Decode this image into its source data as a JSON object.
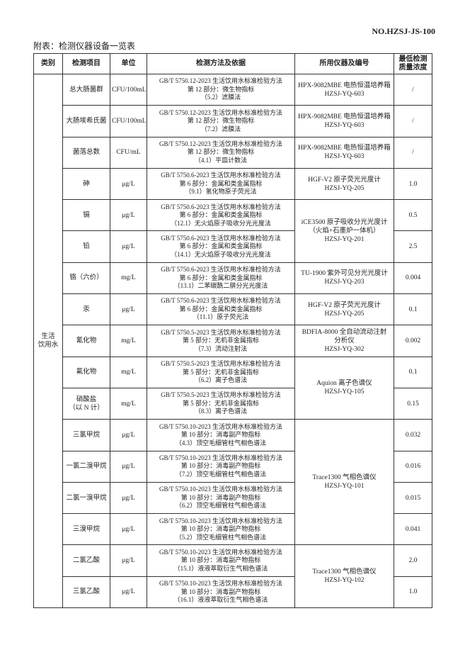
{
  "header": {
    "doc_no": "NO.HZSJ-JS-100",
    "caption": "附表：检测仪器设备一览表"
  },
  "table": {
    "columns": [
      "类别",
      "检测项目",
      "单位",
      "检测方法及依据",
      "所用仪器及编号",
      [
        "最低检测",
        "质量浓度"
      ]
    ],
    "category": [
      "生活",
      "饮用水"
    ],
    "rows": [
      {
        "item": [
          "总大肠菌群"
        ],
        "unit": "CFU/100mL",
        "method": [
          "GB/T 5750.12-2023 生活饮用水标准检验方法",
          "第 12 部分：微生物指标",
          "（5.2）滤膜法"
        ],
        "instrument": [
          "HPX-9082MBE 电热恒温培养箱",
          "HZSJ-YQ-603"
        ],
        "limit": "/"
      },
      {
        "item": [
          "大肠埃希氏菌"
        ],
        "unit": "CFU/100mL",
        "method": [
          "GB/T 5750.12-2023 生活饮用水标准检验方法",
          "第 12 部分：微生物指标",
          "（7.2）滤膜法"
        ],
        "instrument": [
          "HPX-9082MBE 电热恒温培养箱",
          "HZSJ-YQ-603"
        ],
        "limit": "/"
      },
      {
        "item": [
          "菌落总数"
        ],
        "unit": "CFU/mL",
        "method": [
          "GB/T 5750.12-2023 生活饮用水标准检验方法",
          "第 12 部分：微生物指标",
          "（4.1）平皿计数法"
        ],
        "instrument": [
          "HPX-9082MBE 电热恒温培养箱",
          "HZSJ-YQ-603"
        ],
        "limit": "/"
      },
      {
        "item": [
          "砷"
        ],
        "unit": "μg/L",
        "method": [
          "GB/T 5750.6-2023 生活饮用水标准检验方法",
          "第 6 部分：金属和类金属指标",
          "（9.1）氢化物原子荧光法"
        ],
        "instrument": [
          "HGF-V2 原子荧光光度计",
          "HZSJ-YQ-205"
        ],
        "limit": "1.0"
      },
      {
        "item": [
          "镉"
        ],
        "unit": "μg/L",
        "method": [
          "GB/T 5750.6-2023 生活饮用水标准检验方法",
          "第 6 部分：金属和类金属指标",
          "（12.1）无火焰原子吸收分光光度法"
        ],
        "instrument": [
          "iCE3500 原子吸收分光光度计",
          "（火焰+石墨炉一体机）",
          "HZSJ-YQ-201"
        ],
        "limit": "0.5"
      },
      {
        "item": [
          "铅"
        ],
        "unit": "μg/L",
        "method": [
          "GB/T 5750.6-2023 生活饮用水标准检验方法",
          "第 6 部分：金属和类金属指标",
          "（14.1）无火焰原子吸收分光光度法"
        ],
        "limit": "2.5"
      },
      {
        "item": [
          "铬（六价）"
        ],
        "unit": "mg/L",
        "method": [
          "GB/T 5750.6-2023 生活饮用水标准检验方法",
          "第 6 部分：金属和类金属指标",
          "（13.1）二苯碳酰二肼分光光度法"
        ],
        "instrument": [
          "TU-1900 紫外可见分光光度计",
          "HZSJ-YQ-203"
        ],
        "limit": "0.004"
      },
      {
        "item": [
          "汞"
        ],
        "unit": "μg/L",
        "method": [
          "GB/T 5750.6-2023 生活饮用水标准检验方法",
          "第 6 部分：金属和类金属指标",
          "（11.1）原子荧光法"
        ],
        "instrument": [
          "HGF-V2 原子荧光光度计",
          "HZSJ-YQ-205"
        ],
        "limit": "0.1"
      },
      {
        "item": [
          "氰化物"
        ],
        "unit": "mg/L",
        "method": [
          "GB/T 5750.5-2023 生活饮用水标准检验方法",
          "第 5 部分：无机非金属指标",
          "（7.3）流动注射法"
        ],
        "instrument": [
          "BDFIA-8000 全自动流动注射",
          "分析仪",
          "HZSJ-YQ-302"
        ],
        "limit": "0.002"
      },
      {
        "item": [
          "氟化物"
        ],
        "unit": "mg/L",
        "method": [
          "GB/T 5750.5-2023 生活饮用水标准检验方法",
          "第 5 部分：无机非金属指标",
          "（6.2）离子色谱法"
        ],
        "instrument": [
          "Aquion 离子色谱仪",
          "HZSJ-YQ-105"
        ],
        "limit": "0.1"
      },
      {
        "item": [
          "硝酸盐",
          "（以 N 计）"
        ],
        "unit": "mg/L",
        "method": [
          "GB/T 5750.5-2023 生活饮用水标准检验方法",
          "第 5 部分：无机非金属指标",
          "（8.3）离子色谱法"
        ],
        "limit": "0.15"
      },
      {
        "item": [
          "三氯甲烷"
        ],
        "unit": "μg/L",
        "method": [
          "GB/T 5750.10-2023 生活饮用水标准检验方法",
          "第 10 部分：消毒副产物指标",
          "（4.3）顶空毛细管柱气相色谱法"
        ],
        "instrument": [
          "Trace1300 气相色谱仪",
          "HZSJ-YQ-101"
        ],
        "limit": "0.032"
      },
      {
        "item": [
          "一氯二溴甲烷"
        ],
        "unit": "μg/L",
        "method": [
          "GB/T 5750.10-2023 生活饮用水标准检验方法",
          "第 10 部分：消毒副产物指标",
          "（7.2）顶空毛细管柱气相色谱法"
        ],
        "limit": "0.016"
      },
      {
        "item": [
          "二氯一溴甲烷"
        ],
        "unit": "μg/L",
        "method": [
          "GB/T 5750.10-2023 生活饮用水标准检验方法",
          "第 10 部分：消毒副产物指标",
          "（6.2）顶空毛细管柱气相色谱法"
        ],
        "limit": "0.015"
      },
      {
        "item": [
          "三溴甲烷"
        ],
        "unit": "μg/L",
        "method": [
          "GB/T 5750.10-2023 生活饮用水标准检验方法",
          "第 10 部分：消毒副产物指标",
          "（5.2）顶空毛细管柱气相色谱法"
        ],
        "limit": "0.041"
      },
      {
        "item": [
          "二氯乙酸"
        ],
        "unit": "μg/L",
        "method": [
          "GB/T 5750.10-2023 生活饮用水标准检验方法",
          "第 10 部分：消毒副产物指标",
          "（15.1）液液萃取衍生气相色谱法"
        ],
        "instrument": [
          "Trace1300 气相色谱仪",
          "HZSJ-YQ-102"
        ],
        "limit": "2.0"
      },
      {
        "item": [
          "三氯乙酸"
        ],
        "unit": "μg/L",
        "method": [
          "GB/T 5750.10-2023 生活饮用水标准检验方法",
          "第 10 部分：消毒副产物指标",
          "（16.1）液液萃取衍生气相色谱法"
        ],
        "limit": "1.0"
      }
    ]
  }
}
